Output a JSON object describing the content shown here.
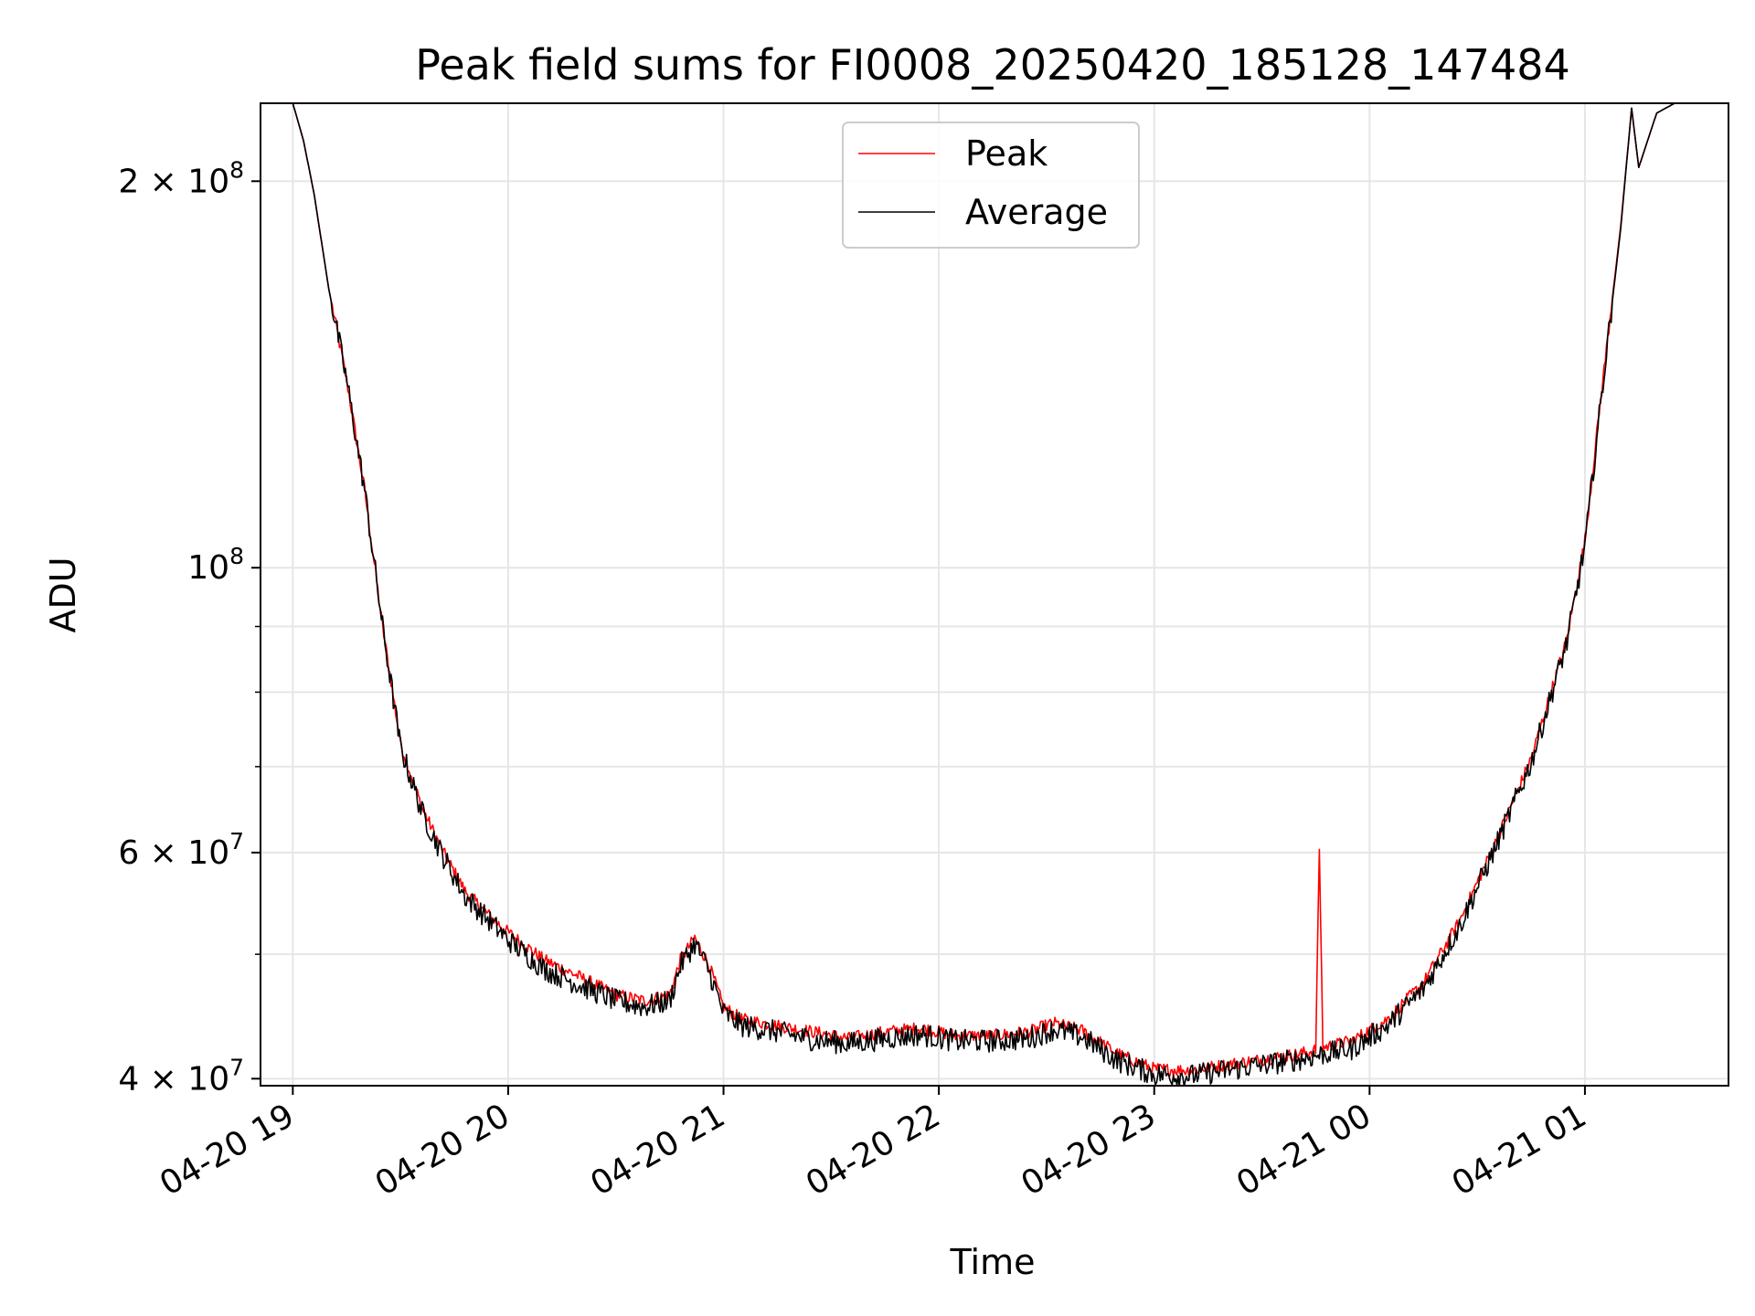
{
  "chart_data": {
    "type": "line",
    "title": "Peak field sums for FI0008_20250420_185128_147484",
    "xlabel": "Time",
    "ylabel": "ADU",
    "x_scale": "time",
    "y_scale": "log",
    "xlim": [
      "2025-04-20 18:51",
      "2025-04-21 01:40"
    ],
    "ylim": [
      39500000,
      230000000
    ],
    "x_ticks": [
      {
        "t": "2025-04-20 19:00",
        "label": "04-20 19"
      },
      {
        "t": "2025-04-20 20:00",
        "label": "04-20 20"
      },
      {
        "t": "2025-04-20 21:00",
        "label": "04-20 21"
      },
      {
        "t": "2025-04-20 22:00",
        "label": "04-20 22"
      },
      {
        "t": "2025-04-20 23:00",
        "label": "04-20 23"
      },
      {
        "t": "2025-04-21 00:00",
        "label": "04-21 00"
      },
      {
        "t": "2025-04-21 01:00",
        "label": "04-21 01"
      }
    ],
    "y_major_ticks": [
      {
        "v": 40000000,
        "label": "4 × 10",
        "exp": "7"
      },
      {
        "v": 60000000,
        "label": "6 × 10",
        "exp": "7"
      },
      {
        "v": 100000000,
        "label": "10",
        "exp": "8"
      },
      {
        "v": 200000000,
        "label": "2 × 10",
        "exp": "8"
      }
    ],
    "y_minor_ticks": [
      50000000,
      70000000,
      80000000,
      90000000
    ],
    "grid": true,
    "legend_position": "top-center",
    "series": [
      {
        "name": "Peak",
        "color": "#ff0000",
        "noise": 0.01,
        "x": [
          "2025-04-20 18:51",
          "2025-04-20 19:00",
          "2025-04-20 19:03",
          "2025-04-20 19:06",
          "2025-04-20 19:10",
          "2025-04-20 19:15",
          "2025-04-20 19:20",
          "2025-04-20 19:25",
          "2025-04-20 19:30",
          "2025-04-20 19:36",
          "2025-04-20 19:42",
          "2025-04-20 19:48",
          "2025-04-20 19:55",
          "2025-04-20 20:00",
          "2025-04-20 20:10",
          "2025-04-20 20:20",
          "2025-04-20 20:30",
          "2025-04-20 20:38",
          "2025-04-20 20:45",
          "2025-04-20 20:48",
          "2025-04-20 20:52",
          "2025-04-20 20:56",
          "2025-04-20 21:00",
          "2025-04-20 21:05",
          "2025-04-20 21:15",
          "2025-04-20 21:25",
          "2025-04-20 21:35",
          "2025-04-20 21:45",
          "2025-04-20 21:55",
          "2025-04-20 22:05",
          "2025-04-20 22:15",
          "2025-04-20 22:25",
          "2025-04-20 22:32",
          "2025-04-20 22:40",
          "2025-04-20 22:50",
          "2025-04-20 23:00",
          "2025-04-20 23:10",
          "2025-04-20 23:20",
          "2025-04-20 23:30",
          "2025-04-20 23:40",
          "2025-04-20 23:45",
          "2025-04-20 23:46",
          "2025-04-20 23:47",
          "2025-04-20 23:55",
          "2025-04-21 00:05",
          "2025-04-21 00:15",
          "2025-04-21 00:25",
          "2025-04-21 00:35",
          "2025-04-21 00:45",
          "2025-04-21 00:55",
          "2025-04-21 01:00",
          "2025-04-21 01:05",
          "2025-04-21 01:10",
          "2025-04-21 01:13",
          "2025-04-21 01:15",
          "2025-04-21 01:20",
          "2025-04-21 01:25",
          "2025-04-21 01:40"
        ],
        "y": [
          230000000,
          230000000,
          215000000,
          195000000,
          165000000,
          140000000,
          115000000,
          90000000,
          73000000,
          65000000,
          60000000,
          56000000,
          53500000,
          52000000,
          49500000,
          48000000,
          46500000,
          46000000,
          46500000,
          49500000,
          51500000,
          49000000,
          45500000,
          44500000,
          44000000,
          43500000,
          43000000,
          43500000,
          43800000,
          43200000,
          43200000,
          43500000,
          44200000,
          43600000,
          41800000,
          40700000,
          40600000,
          41000000,
          41400000,
          41800000,
          42100000,
          60500000,
          42300000,
          42800000,
          44500000,
          47500000,
          53000000,
          61000000,
          71000000,
          88000000,
          105000000,
          140000000,
          185000000,
          228000000,
          205000000,
          226000000,
          230000000,
          230000000
        ]
      },
      {
        "name": "Average",
        "color": "#000000",
        "noise": 0.018,
        "x": [
          "2025-04-20 18:51",
          "2025-04-20 19:00",
          "2025-04-20 19:03",
          "2025-04-20 19:06",
          "2025-04-20 19:10",
          "2025-04-20 19:15",
          "2025-04-20 19:20",
          "2025-04-20 19:25",
          "2025-04-20 19:30",
          "2025-04-20 19:36",
          "2025-04-20 19:42",
          "2025-04-20 19:48",
          "2025-04-20 19:55",
          "2025-04-20 20:00",
          "2025-04-20 20:10",
          "2025-04-20 20:20",
          "2025-04-20 20:30",
          "2025-04-20 20:38",
          "2025-04-20 20:45",
          "2025-04-20 20:48",
          "2025-04-20 20:52",
          "2025-04-20 20:56",
          "2025-04-20 21:00",
          "2025-04-20 21:05",
          "2025-04-20 21:15",
          "2025-04-20 21:25",
          "2025-04-20 21:35",
          "2025-04-20 21:45",
          "2025-04-20 21:55",
          "2025-04-20 22:05",
          "2025-04-20 22:15",
          "2025-04-20 22:25",
          "2025-04-20 22:32",
          "2025-04-20 22:40",
          "2025-04-20 22:50",
          "2025-04-20 23:00",
          "2025-04-20 23:10",
          "2025-04-20 23:20",
          "2025-04-20 23:30",
          "2025-04-20 23:40",
          "2025-04-20 23:47",
          "2025-04-20 23:55",
          "2025-04-21 00:05",
          "2025-04-21 00:15",
          "2025-04-21 00:25",
          "2025-04-21 00:35",
          "2025-04-21 00:45",
          "2025-04-21 00:55",
          "2025-04-21 01:00",
          "2025-04-21 01:05",
          "2025-04-21 01:10",
          "2025-04-21 01:13",
          "2025-04-21 01:15",
          "2025-04-21 01:20",
          "2025-04-21 01:25",
          "2025-04-21 01:40"
        ],
        "y": [
          230000000,
          230000000,
          215000000,
          195000000,
          165000000,
          140000000,
          115000000,
          90000000,
          72500000,
          64500000,
          59500000,
          55500000,
          53000000,
          51300000,
          48700000,
          47300000,
          46000000,
          45500000,
          46000000,
          49000000,
          51000000,
          48500000,
          45000000,
          44000000,
          43500000,
          42900000,
          42600000,
          43000000,
          43300000,
          42800000,
          42800000,
          43000000,
          43700000,
          43100000,
          41300000,
          40300000,
          40200000,
          40600000,
          41000000,
          41400000,
          41800000,
          42200000,
          44000000,
          47000000,
          52500000,
          60500000,
          70500000,
          87500000,
          104000000,
          139000000,
          184000000,
          228000000,
          205000000,
          226000000,
          230000000,
          230000000
        ]
      }
    ]
  }
}
